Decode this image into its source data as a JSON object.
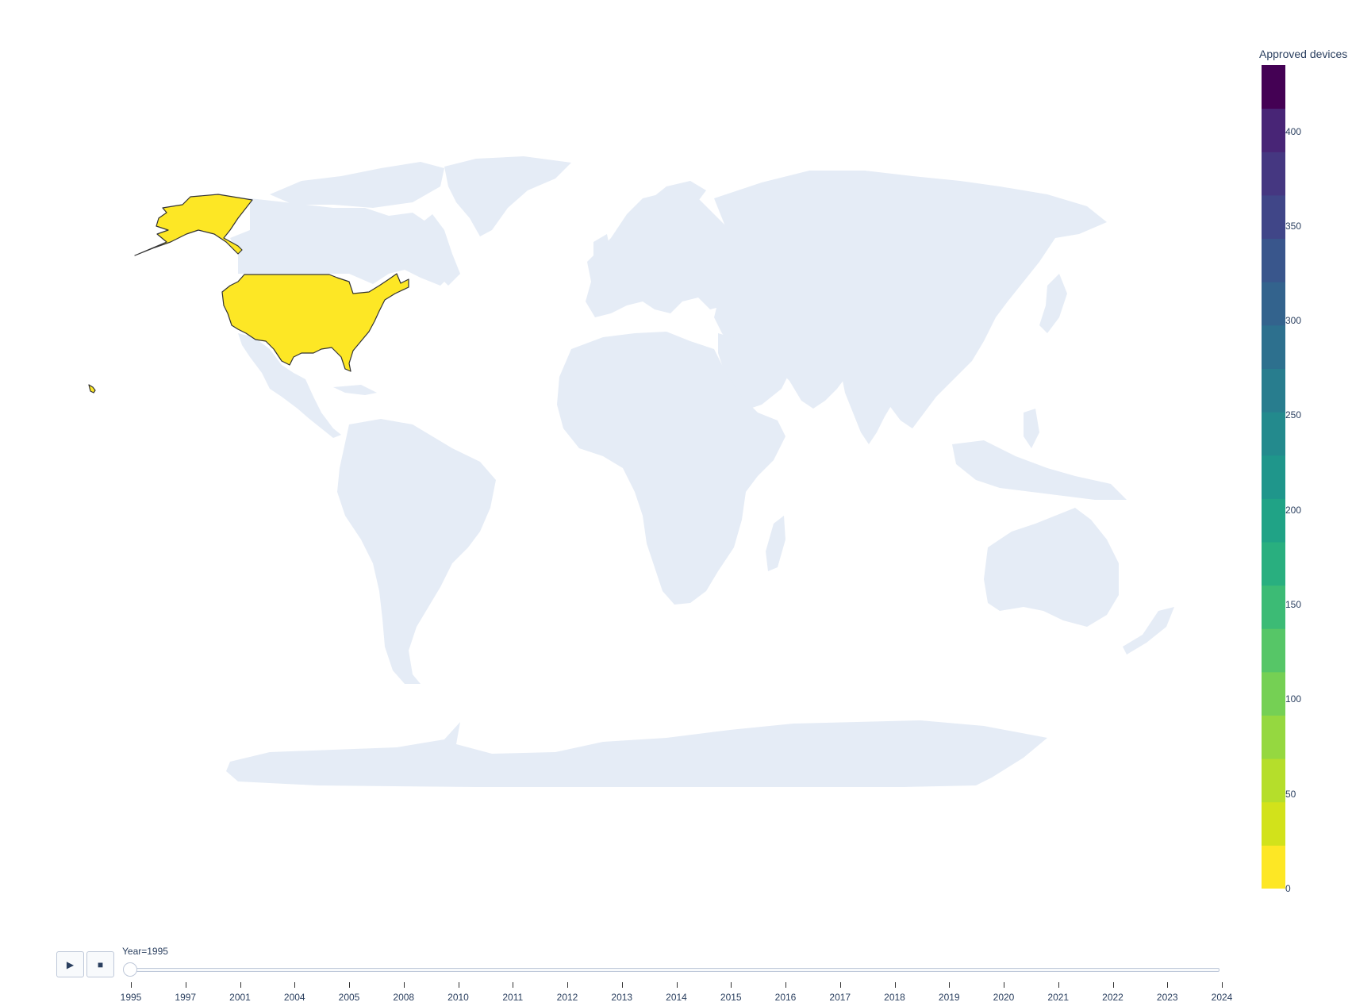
{
  "chart_data": {
    "type": "choropleth",
    "projection": "equirectangular",
    "highlighted": [
      {
        "region": "United States",
        "year": 1995,
        "value": 0,
        "color": "#fde725"
      }
    ],
    "land_color": "#e5ecf6",
    "colorbar": {
      "title": "Approved devices",
      "range": [
        0,
        435
      ],
      "ticks": [
        "0",
        "50",
        "100",
        "150",
        "200",
        "250",
        "300",
        "350",
        "400"
      ],
      "colorscale": "Viridis (reversed)",
      "colors": [
        "#fde725",
        "#d2e21b",
        "#b5de2b",
        "#95d840",
        "#75d054",
        "#56c667",
        "#3cbb75",
        "#29af7f",
        "#20a386",
        "#1f968b",
        "#238a8d",
        "#287d8e",
        "#2d708e",
        "#33638d",
        "#39568c",
        "#404688",
        "#453781",
        "#482576",
        "#440154"
      ]
    }
  },
  "slider": {
    "current_label": "Year=1995",
    "current_index": 0,
    "years": [
      "1995",
      "1997",
      "2001",
      "2004",
      "2005",
      "2008",
      "2010",
      "2011",
      "2012",
      "2013",
      "2014",
      "2015",
      "2016",
      "2017",
      "2018",
      "2019",
      "2020",
      "2021",
      "2022",
      "2023",
      "2024"
    ]
  },
  "controls": {
    "play_icon": "play-icon",
    "stop_icon": "stop-icon",
    "play_glyph": "▶",
    "stop_glyph": "■"
  }
}
